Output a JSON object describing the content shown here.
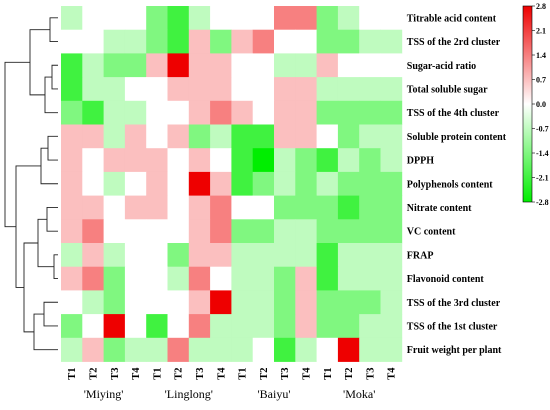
{
  "chart_data": {
    "type": "heatmap",
    "title": "",
    "rows": [
      "Titrable acid content",
      "TSS of the 2rd cluster",
      "Sugar-acid ratio",
      "Total soluble sugar",
      "TSS of the 4th cluster",
      "Soluble protein content",
      "DPPH",
      "Polyphenols content",
      "Nitrate content",
      "VC content",
      "FRAP",
      "Flavonoid content",
      "TSS of the 3rd cluster",
      "TSS of the 1st cluster",
      "Fruit weight per plant"
    ],
    "columns": [
      "T1",
      "T2",
      "T3",
      "T4",
      "T1",
      "T2",
      "T3",
      "T4",
      "T1",
      "T2",
      "T3",
      "T4",
      "T1",
      "T2",
      "T3",
      "T4"
    ],
    "groups": [
      {
        "label": "'Miying'",
        "span": 4
      },
      {
        "label": "'Linglong'",
        "span": 4
      },
      {
        "label": "'Baiyu'",
        "span": 4
      },
      {
        "label": "'Moka'",
        "span": 4
      }
    ],
    "values": [
      [
        -0.7,
        0.0,
        0.0,
        0.0,
        -1.4,
        -2.1,
        -0.7,
        0.0,
        0.0,
        0.0,
        1.4,
        1.4,
        -1.4,
        -0.7,
        0.0,
        0.0
      ],
      [
        0.0,
        0.0,
        -0.7,
        -0.7,
        -1.4,
        -2.1,
        0.7,
        -1.4,
        0.7,
        1.4,
        0.0,
        0.0,
        -1.4,
        -1.4,
        -0.7,
        -0.7
      ],
      [
        -2.1,
        -0.7,
        -1.4,
        -1.4,
        0.7,
        2.8,
        0.7,
        0.7,
        0.0,
        0.0,
        -0.7,
        -0.7,
        0.7,
        0.0,
        0.0,
        0.0
      ],
      [
        -2.1,
        -0.7,
        -0.7,
        0.0,
        0.0,
        0.7,
        0.7,
        0.7,
        0.0,
        0.0,
        0.7,
        0.7,
        -0.7,
        -0.7,
        -0.7,
        -0.7
      ],
      [
        -1.4,
        -2.1,
        -0.7,
        -0.7,
        0.0,
        0.0,
        0.7,
        1.4,
        0.7,
        0.0,
        0.7,
        0.7,
        -1.4,
        -1.4,
        -1.4,
        -1.4
      ],
      [
        0.7,
        0.7,
        -0.7,
        0.7,
        0.0,
        0.7,
        -1.4,
        -0.7,
        -2.1,
        -2.1,
        0.7,
        0.7,
        0.0,
        -1.4,
        -0.7,
        -0.7
      ],
      [
        0.7,
        0.0,
        0.7,
        0.7,
        0.7,
        0.0,
        0.7,
        0.0,
        -2.1,
        -2.8,
        -0.7,
        -1.4,
        -2.1,
        -0.7,
        -1.4,
        -0.7
      ],
      [
        0.7,
        0.0,
        -0.7,
        0.0,
        0.7,
        0.0,
        2.8,
        0.7,
        -2.1,
        -1.4,
        -0.7,
        -1.4,
        -0.7,
        -1.4,
        -1.4,
        -1.4
      ],
      [
        0.7,
        0.7,
        0.0,
        0.7,
        0.7,
        0.0,
        0.7,
        1.4,
        0.0,
        0.0,
        -1.4,
        -1.4,
        -1.4,
        -2.1,
        -1.4,
        -1.4
      ],
      [
        0.7,
        1.4,
        0.0,
        0.0,
        0.0,
        0.0,
        0.7,
        1.4,
        -1.4,
        -1.4,
        -0.7,
        -0.7,
        -1.4,
        -1.4,
        -1.4,
        -1.4
      ],
      [
        -0.7,
        0.7,
        -0.7,
        0.0,
        0.0,
        -1.4,
        0.7,
        0.7,
        -0.7,
        -0.7,
        -0.7,
        -0.7,
        -2.1,
        -0.7,
        -0.7,
        -0.7
      ],
      [
        0.7,
        1.4,
        -1.4,
        0.0,
        0.0,
        -0.7,
        1.4,
        0.0,
        -0.7,
        -0.7,
        -1.4,
        0.7,
        -2.1,
        -0.7,
        -0.7,
        -0.7
      ],
      [
        0.0,
        -0.7,
        -1.4,
        0.0,
        0.0,
        0.0,
        0.7,
        2.8,
        -0.7,
        -0.7,
        -1.4,
        0.7,
        -1.4,
        -1.4,
        -1.4,
        -0.7
      ],
      [
        -1.4,
        0.0,
        2.8,
        0.0,
        -2.1,
        0.0,
        1.4,
        -0.7,
        -0.7,
        -0.7,
        -1.4,
        0.7,
        -1.4,
        -1.4,
        -0.7,
        -0.7
      ],
      [
        -0.7,
        0.7,
        -1.4,
        -0.7,
        -0.7,
        1.4,
        -0.7,
        -0.7,
        -0.7,
        0.0,
        -2.1,
        -0.7,
        0.0,
        2.8,
        -0.7,
        -0.7
      ]
    ],
    "colorbar": {
      "min": -2.8,
      "max": 2.8,
      "ticks": [
        "2.8",
        "2.1",
        "1.4",
        "0.7",
        "0.0",
        "-0.7",
        "-1.4",
        "-2.1",
        "-2.8"
      ],
      "colors": {
        "high": "#ee0000",
        "mid": "#ffffff",
        "low": "#00ee00"
      }
    }
  }
}
